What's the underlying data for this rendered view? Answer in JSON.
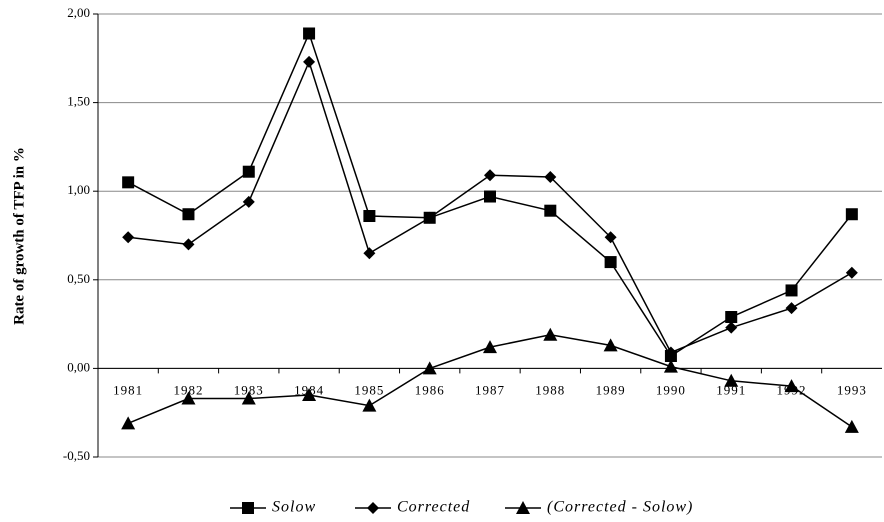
{
  "chart_data": {
    "type": "line",
    "y_label": "Rate of growth of TFP in %",
    "categories": [
      "1981",
      "1982",
      "1983",
      "1984",
      "1985",
      "1986",
      "1987",
      "1988",
      "1989",
      "1990",
      "1991",
      "1992",
      "1993"
    ],
    "series": [
      {
        "name": "Solow",
        "color": "#000000",
        "marker": "square",
        "values": [
          1.05,
          0.87,
          1.11,
          1.89,
          0.86,
          0.85,
          0.97,
          0.89,
          0.6,
          0.07,
          0.29,
          0.44,
          0.87
        ]
      },
      {
        "name": "Corrected",
        "color": "#000000",
        "marker": "diamond",
        "values": [
          0.74,
          0.7,
          0.94,
          1.73,
          0.65,
          0.85,
          1.09,
          1.08,
          0.74,
          0.09,
          0.23,
          0.34,
          0.54
        ]
      },
      {
        "name": "(Corrected - Solow)",
        "color": "#000000",
        "marker": "triangle",
        "values": [
          -0.31,
          -0.17,
          -0.17,
          -0.15,
          -0.21,
          0.0,
          0.12,
          0.19,
          0.13,
          0.01,
          -0.07,
          -0.1,
          -0.33
        ]
      }
    ],
    "ylim": [
      -0.5,
      2.0
    ],
    "yticks": [
      {
        "value": -0.5,
        "label": "-0,50"
      },
      {
        "value": 0,
        "label": "0,00"
      },
      {
        "value": 0.5,
        "label": "0,50"
      },
      {
        "value": 1.0,
        "label": "1,00"
      },
      {
        "value": 1.5,
        "label": "1,50"
      },
      {
        "value": 2.0,
        "label": "2,00"
      }
    ],
    "grid": true,
    "legend": "bottom"
  }
}
